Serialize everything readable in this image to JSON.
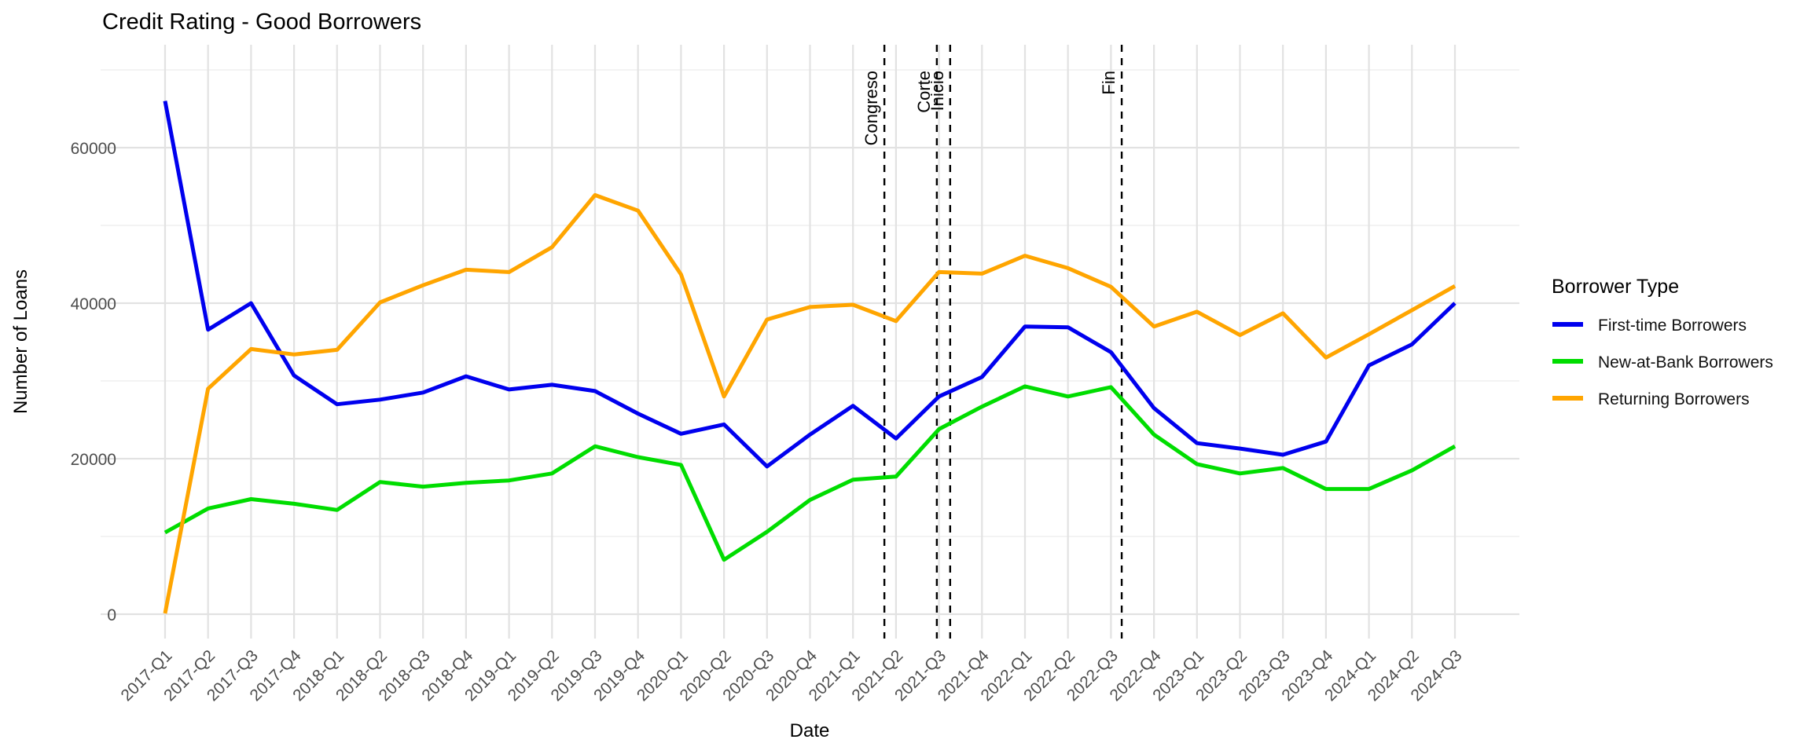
{
  "title": "Credit Rating - Good Borrowers",
  "chart_data": {
    "type": "line",
    "title": "Credit Rating - Good Borrowers",
    "xlabel": "Date",
    "ylabel": "Number of Loans",
    "ylim": [
      0,
      70000
    ],
    "yticks": [
      0,
      20000,
      40000,
      60000
    ],
    "ytick_labels": [
      "0",
      "20000",
      "40000",
      "60000"
    ],
    "minor_yticks": [
      10000,
      30000,
      50000,
      70000
    ],
    "grid": true,
    "legend_title": "Borrower Type",
    "legend_position": "right",
    "categories": [
      "2017-Q1",
      "2017-Q2",
      "2017-Q3",
      "2017-Q4",
      "2018-Q1",
      "2018-Q2",
      "2018-Q3",
      "2018-Q4",
      "2019-Q1",
      "2019-Q2",
      "2019-Q3",
      "2019-Q4",
      "2020-Q1",
      "2020-Q2",
      "2020-Q3",
      "2020-Q4",
      "2021-Q1",
      "2021-Q2",
      "2021-Q3",
      "2021-Q4",
      "2022-Q1",
      "2022-Q2",
      "2022-Q3",
      "2022-Q4",
      "2023-Q1",
      "2023-Q2",
      "2023-Q3",
      "2023-Q4",
      "2024-Q1",
      "2024-Q2",
      "2024-Q3"
    ],
    "series": [
      {
        "name": "First-time Borrowers",
        "color": "#0000ee",
        "values": [
          66000,
          36600,
          40000,
          30700,
          27000,
          27600,
          28500,
          30600,
          28900,
          29500,
          28700,
          25800,
          23200,
          24400,
          19000,
          23100,
          26800,
          22600,
          28000,
          30500,
          37000,
          36900,
          33700,
          26500,
          22000,
          21300,
          20500,
          22200,
          32000,
          34700,
          40000
        ]
      },
      {
        "name": "New-at-Bank Borrowers",
        "color": "#00dd00",
        "values": [
          10500,
          13600,
          14800,
          14200,
          13400,
          17000,
          16400,
          16900,
          17200,
          18100,
          21600,
          20200,
          19200,
          7000,
          10600,
          14700,
          17300,
          17700,
          23800,
          26700,
          29300,
          28000,
          29200,
          23100,
          19300,
          18100,
          18800,
          16100,
          16100,
          18500,
          21600
        ]
      },
      {
        "name": "Returning Borrowers",
        "color": "#ffa500",
        "values": [
          100,
          29000,
          34100,
          33400,
          34000,
          40100,
          42300,
          44300,
          44000,
          47200,
          53900,
          51900,
          43700,
          28000,
          37900,
          39500,
          39800,
          37700,
          44000,
          43800,
          46100,
          44500,
          42100,
          37000,
          38900,
          35900,
          38700,
          33000,
          36000,
          39100,
          42200
        ]
      }
    ],
    "vlines": [
      {
        "label": "Congreso",
        "x_index": 16.73
      },
      {
        "label": "Corte",
        "x_index": 17.95
      },
      {
        "label": "Inicio",
        "x_index": 18.26
      },
      {
        "label": "Fin",
        "x_index": 22.25
      }
    ]
  },
  "style": {
    "grid_major_color": "#e2e2e2",
    "grid_minor_color": "#efefef",
    "tick_label_color": "#4d4d4d",
    "text_color": "#000000",
    "vline_color": "#000000"
  }
}
